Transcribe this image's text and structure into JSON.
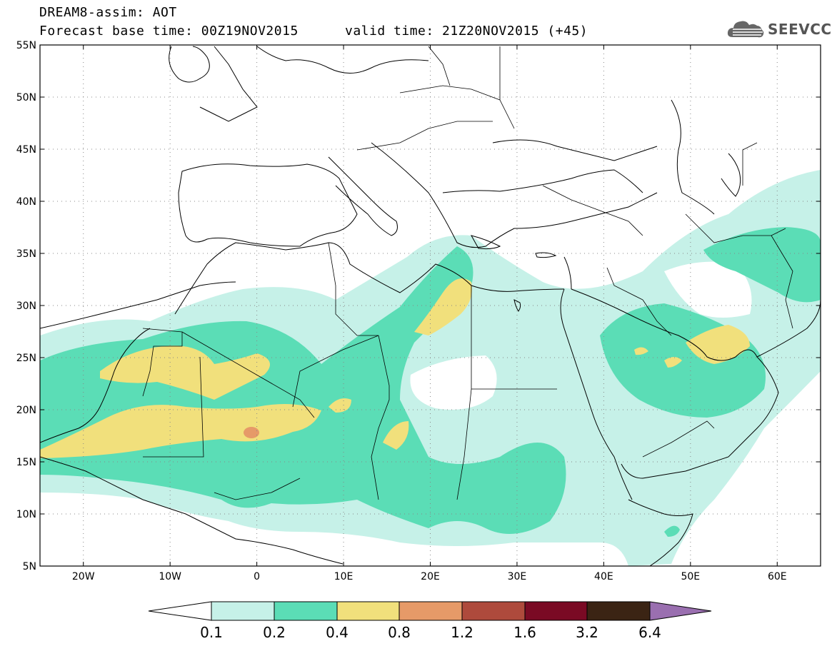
{
  "header": {
    "title": "DREAM8-assim: AOT",
    "base_time": "Forecast base time: 00Z19NOV2015",
    "valid_time": "valid time: 21Z20NOV2015 (+45)"
  },
  "logo": {
    "text": "SEEVCCC",
    "icon": "cloud-icon"
  },
  "map": {
    "lat_labels": [
      "55N",
      "50N",
      "45N",
      "40N",
      "35N",
      "30N",
      "25N",
      "20N",
      "15N",
      "10N",
      "5N"
    ],
    "lon_labels": [
      "20W",
      "10W",
      "0",
      "10E",
      "20E",
      "30E",
      "40E",
      "50E",
      "60E"
    ],
    "lat_range": [
      5,
      55
    ],
    "lon_range": [
      -25,
      65
    ],
    "grid": "dotted"
  },
  "legend": {
    "labels": [
      "0.1",
      "0.2",
      "0.4",
      "0.8",
      "1.2",
      "1.6",
      "3.2",
      "6.4"
    ],
    "colors": {
      "below": "#ffffff",
      "c1": "#c6f1e8",
      "c2": "#5bddb6",
      "c3": "#f1e07c",
      "c4": "#e69a68",
      "c5": "#ae4a3c",
      "c6": "#7a0a24",
      "c7": "#3b2414",
      "above": "#9a6fb0"
    }
  }
}
